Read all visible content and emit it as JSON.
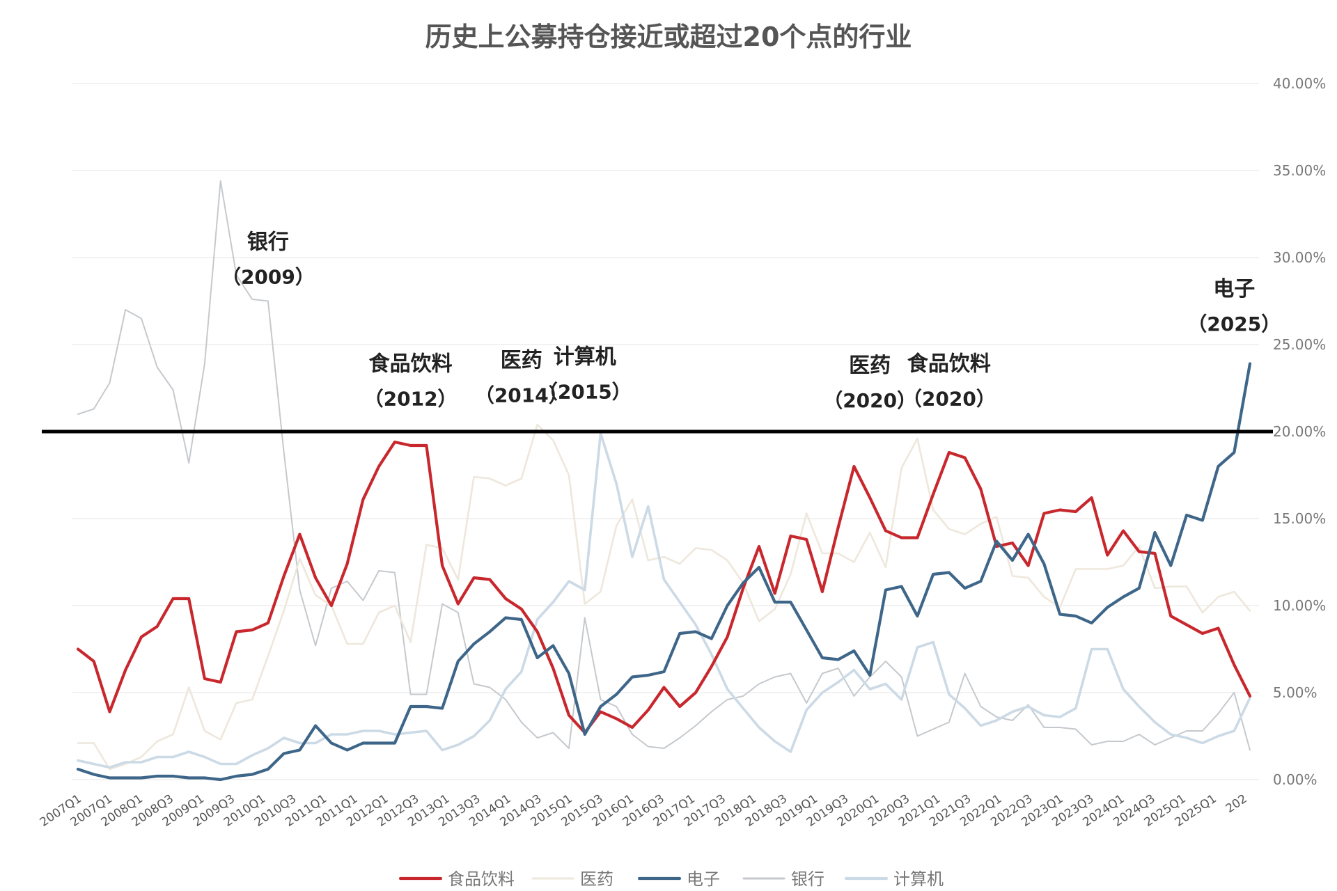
{
  "chart_data": {
    "type": "line",
    "title": "历史上公募持仓接近或超过20个点的行业",
    "xlabel": "",
    "ylabel": "",
    "ylim": [
      0,
      40
    ],
    "grid": true,
    "legend_position": "bottom",
    "y_ticks": [
      "0.00%",
      "5.00%",
      "10.00%",
      "15.00%",
      "20.00%",
      "25.00%",
      "30.00%",
      "35.00%",
      "40.00%"
    ],
    "x_tick_labels": [
      "2007Q1",
      "2007Q1",
      "2008Q1",
      "2008Q3",
      "2009Q1",
      "2009Q3",
      "2010Q1",
      "2010Q3",
      "2011Q1",
      "2011Q1",
      "2012Q1",
      "2012Q3",
      "2013Q1",
      "2013Q3",
      "2014Q1",
      "2014Q3",
      "2015Q1",
      "2015Q3",
      "2016Q1",
      "2016Q3",
      "2017Q1",
      "2017Q3",
      "2018Q1",
      "2018Q3",
      "2019Q1",
      "2019Q3",
      "2020Q1",
      "2020Q3",
      "2021Q1",
      "2021Q3",
      "2022Q1",
      "2022Q3",
      "2023Q1",
      "2023Q3",
      "2024Q1",
      "2024Q3",
      "2025Q1",
      "2025Q1",
      "202"
    ],
    "threshold": {
      "value": 20,
      "color": "#000000"
    },
    "annotations": [
      {
        "line1": "银行",
        "line2": "（2009）",
        "at_index": 12,
        "value": 30.5
      },
      {
        "line1": "食品饮料",
        "line2": "（2012）",
        "at_index": 21,
        "value": 23.5
      },
      {
        "line1": "医药",
        "line2": "（2014）",
        "at_index": 28,
        "value": 23.7
      },
      {
        "line1": "计算机",
        "line2": "（2015）",
        "at_index": 32,
        "value": 23.9
      },
      {
        "line1": "医药",
        "line2": "（2020）",
        "at_index": 50,
        "value": 23.4
      },
      {
        "line1": "食品饮料",
        "line2": "（2020）",
        "at_index": 55,
        "value": 23.5
      },
      {
        "line1": "电子",
        "line2": "（2025）",
        "at_index": 73,
        "value": 27.8
      }
    ],
    "series": [
      {
        "name": "食品饮料",
        "color": "#c8282d",
        "width": 4.2,
        "values": [
          7.5,
          6.8,
          3.9,
          6.3,
          8.2,
          8.8,
          10.4,
          10.4,
          5.8,
          5.6,
          8.5,
          8.6,
          9.0,
          11.7,
          14.1,
          11.6,
          10.0,
          12.4,
          16.1,
          18.0,
          19.4,
          19.2,
          19.2,
          12.3,
          10.1,
          11.6,
          11.5,
          10.4,
          9.8,
          8.5,
          6.4,
          3.7,
          2.7,
          3.9,
          3.5,
          3.0,
          4.0,
          5.3,
          4.2,
          5.0,
          6.5,
          8.2,
          11.0,
          13.4,
          10.7,
          14.0,
          13.8,
          10.8,
          14.5,
          18.0,
          16.2,
          14.3,
          13.9,
          13.9,
          16.4,
          18.8,
          18.5,
          16.7,
          13.4,
          13.6,
          12.3,
          15.3,
          15.5,
          15.4,
          16.2,
          12.9,
          14.3,
          13.1,
          13.0,
          9.4,
          8.9,
          8.4,
          8.7,
          6.6,
          4.8
        ]
      },
      {
        "name": "医药",
        "color": "#eee7dc",
        "width": 2.6,
        "values": [
          2.1,
          2.1,
          0.6,
          0.9,
          1.3,
          2.2,
          2.6,
          5.3,
          2.8,
          2.3,
          4.4,
          4.6,
          7.1,
          9.7,
          12.7,
          10.6,
          10.0,
          7.8,
          7.8,
          9.6,
          10.0,
          7.9,
          13.5,
          13.3,
          11.5,
          17.4,
          17.3,
          16.9,
          17.3,
          20.4,
          19.5,
          17.5,
          10.1,
          10.8,
          14.6,
          16.1,
          12.6,
          12.8,
          12.4,
          13.3,
          13.2,
          12.6,
          11.3,
          9.1,
          9.8,
          11.8,
          15.3,
          13.0,
          13.0,
          12.5,
          14.2,
          12.2,
          17.9,
          19.6,
          15.5,
          14.4,
          14.1,
          14.7,
          15.1,
          11.7,
          11.6,
          10.5,
          9.9,
          12.1,
          12.1,
          12.1,
          12.3,
          13.4,
          11.0,
          11.1,
          11.1,
          9.6,
          10.5,
          10.8,
          9.7
        ]
      },
      {
        "name": "电子",
        "color": "#3e6689",
        "width": 4.2,
        "values": [
          0.6,
          0.3,
          0.1,
          0.1,
          0.1,
          0.2,
          0.2,
          0.1,
          0.1,
          0.0,
          0.2,
          0.3,
          0.6,
          1.5,
          1.7,
          3.1,
          2.1,
          1.7,
          2.1,
          2.1,
          2.1,
          4.2,
          4.2,
          4.1,
          6.8,
          7.8,
          8.5,
          9.3,
          9.2,
          7.0,
          7.7,
          6.1,
          2.6,
          4.2,
          4.9,
          5.9,
          6.0,
          6.2,
          8.4,
          8.5,
          8.1,
          10.0,
          11.3,
          12.2,
          10.2,
          10.2,
          8.6,
          7.0,
          6.9,
          7.4,
          6.0,
          10.9,
          11.1,
          9.4,
          11.8,
          11.9,
          11.0,
          11.4,
          13.7,
          12.6,
          14.1,
          12.4,
          9.5,
          9.4,
          9.0,
          9.9,
          10.5,
          11.0,
          14.2,
          12.3,
          15.2,
          14.9,
          18.0,
          18.8,
          23.9
        ]
      },
      {
        "name": "银行",
        "color": "#c5c9cd",
        "width": 2.0,
        "values": [
          21.0,
          21.3,
          22.8,
          27.0,
          26.5,
          23.7,
          22.4,
          18.2,
          23.9,
          34.4,
          29.0,
          27.6,
          27.5,
          18.8,
          10.9,
          7.7,
          11.0,
          11.4,
          10.3,
          12.0,
          11.9,
          4.9,
          4.9,
          10.1,
          9.6,
          5.5,
          5.3,
          4.6,
          3.3,
          2.4,
          2.7,
          1.8,
          9.3,
          4.6,
          4.2,
          2.6,
          1.9,
          1.8,
          2.4,
          3.1,
          3.9,
          4.6,
          4.8,
          5.5,
          5.9,
          6.1,
          4.4,
          6.1,
          6.4,
          4.8,
          5.9,
          6.8,
          5.9,
          2.5,
          2.9,
          3.3,
          6.1,
          4.2,
          3.6,
          3.4,
          4.3,
          3.0,
          3.0,
          2.9,
          2.0,
          2.2,
          2.2,
          2.6,
          2.0,
          2.4,
          2.8,
          2.8,
          3.8,
          5.0,
          1.7
        ]
      },
      {
        "name": "计算机",
        "color": "#ccdae6",
        "width": 3.6,
        "values": [
          1.1,
          0.9,
          0.7,
          1.0,
          1.0,
          1.3,
          1.3,
          1.6,
          1.3,
          0.9,
          0.9,
          1.4,
          1.8,
          2.4,
          2.1,
          2.1,
          2.6,
          2.6,
          2.8,
          2.8,
          2.6,
          2.7,
          2.8,
          1.7,
          2.0,
          2.5,
          3.4,
          5.2,
          6.2,
          9.2,
          10.2,
          11.4,
          10.9,
          19.9,
          17.0,
          12.8,
          15.7,
          11.5,
          10.2,
          8.9,
          7.2,
          5.2,
          4.1,
          3.0,
          2.2,
          1.6,
          4.0,
          5.0,
          5.6,
          6.3,
          5.2,
          5.5,
          4.6,
          7.6,
          7.9,
          4.9,
          4.1,
          3.1,
          3.4,
          3.9,
          4.2,
          3.7,
          3.6,
          4.1,
          7.5,
          7.5,
          5.2,
          4.2,
          3.3,
          2.6,
          2.4,
          2.1,
          2.5,
          2.8,
          4.7
        ]
      }
    ]
  }
}
